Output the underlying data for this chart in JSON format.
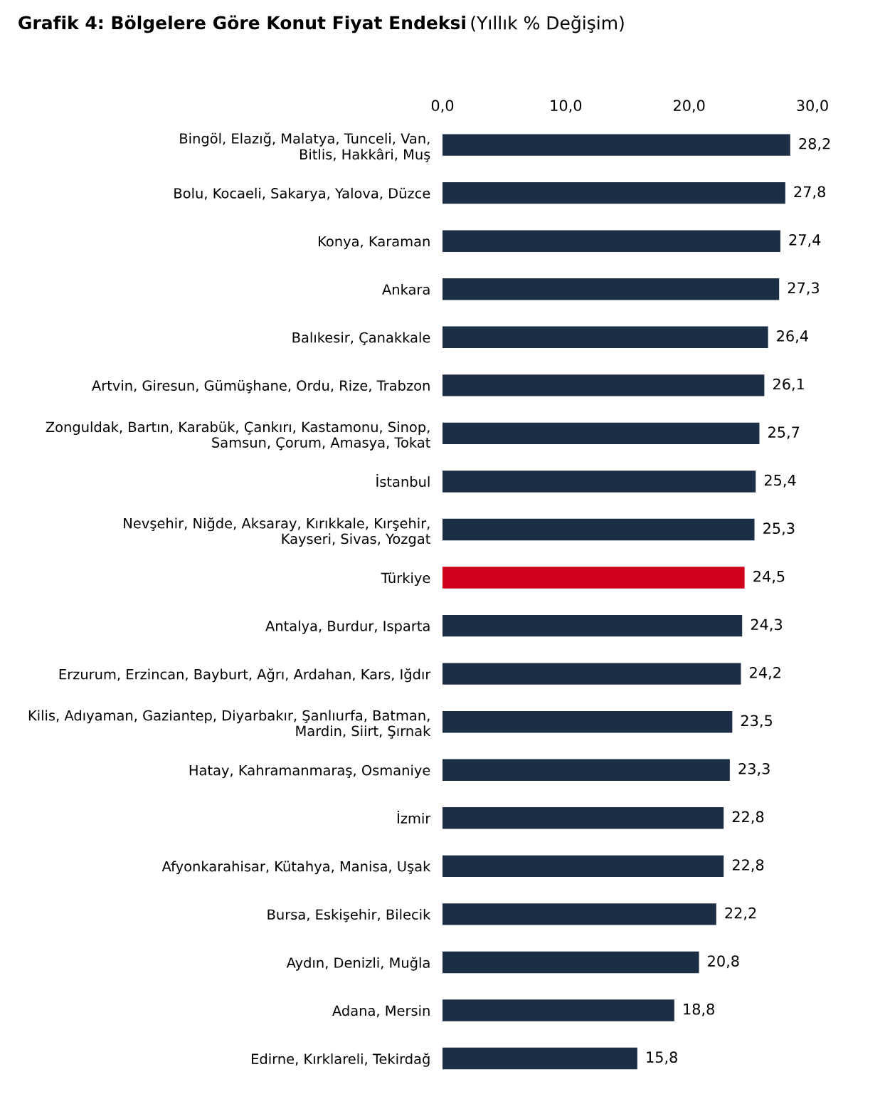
{
  "chart_data": {
    "type": "bar",
    "orientation": "horizontal",
    "title": "Grafik 4: Bölgelere Göre Konut Fiyat Endeksi",
    "subtitle": "(Yıllık % Değişim)",
    "categories": [
      "Bingöl, Elazığ, Malatya, Tunceli, Van,\nBitlis, Hakkâri, Muş",
      "Bolu, Kocaeli, Sakarya, Yalova, Düzce",
      "Konya, Karaman",
      "Ankara",
      "Balıkesir, Çanakkale",
      "Artvin, Giresun, Gümüşhane, Ordu, Rize, Trabzon",
      "Zonguldak, Bartın, Karabük, Çankırı, Kastamonu, Sinop,\nSamsun, Çorum, Amasya, Tokat",
      "İstanbul",
      "Nevşehir, Niğde, Aksaray, Kırıkkale, Kırşehir,\nKayseri, Sivas, Yozgat",
      "Türkiye",
      "Antalya, Burdur, Isparta",
      "Erzurum, Erzincan, Bayburt, Ağrı, Ardahan, Kars, Iğdır",
      "Kilis, Adıyaman, Gaziantep, Diyarbakır, Şanlıurfa, Batman,\nMardin, Siirt, Şırnak",
      "Hatay, Kahramanmaraş, Osmaniye",
      "İzmir",
      "Afyonkarahisar, Kütahya, Manisa, Uşak",
      "Bursa, Eskişehir, Bilecik",
      "Aydın, Denizli, Muğla",
      "Adana, Mersin",
      "Edirne, Kırklareli, Tekirdağ"
    ],
    "values": [
      28.2,
      27.8,
      27.4,
      27.3,
      26.4,
      26.1,
      25.7,
      25.4,
      25.3,
      24.5,
      24.3,
      24.2,
      23.5,
      23.3,
      22.8,
      22.8,
      22.2,
      20.8,
      18.8,
      15.8
    ],
    "value_labels": [
      "28,2",
      "27,8",
      "27,4",
      "27,3",
      "26,4",
      "26,1",
      "25,7",
      "25,4",
      "25,3",
      "24,5",
      "24,3",
      "24,2",
      "23,5",
      "23,3",
      "22,8",
      "22,8",
      "22,2",
      "20,8",
      "18,8",
      "15,8"
    ],
    "colors": [
      "#1c2e45",
      "#1c2e45",
      "#1c2e45",
      "#1c2e45",
      "#1c2e45",
      "#1c2e45",
      "#1c2e45",
      "#1c2e45",
      "#1c2e45",
      "#d0021b",
      "#1c2e45",
      "#1c2e45",
      "#1c2e45",
      "#1c2e45",
      "#1c2e45",
      "#1c2e45",
      "#1c2e45",
      "#1c2e45",
      "#1c2e45",
      "#1c2e45"
    ],
    "xlim": [
      0,
      30
    ],
    "xticks": [
      {
        "value": 0,
        "label": "0,0"
      },
      {
        "value": 10,
        "label": "10,0"
      },
      {
        "value": 20,
        "label": "20,0"
      },
      {
        "value": 30,
        "label": "30,0"
      }
    ],
    "grid": false,
    "legend": false
  }
}
